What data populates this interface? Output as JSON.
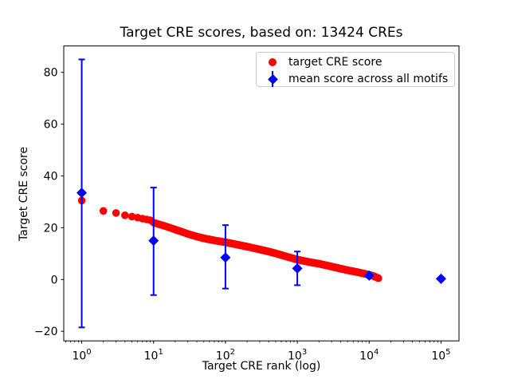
{
  "chart_data": {
    "type": "scatter",
    "title": "Target CRE scores, based on: 13424 CREs",
    "xlabel": "Target CRE rank (log)",
    "ylabel": "Target CRE score",
    "x_scale": "log",
    "xlim_log10": [
      -0.25,
      5.25
    ],
    "ylim": [
      -23.7,
      90.2
    ],
    "x_ticks": [
      1,
      10,
      100,
      1000,
      10000,
      100000
    ],
    "y_ticks": [
      -20,
      0,
      20,
      40,
      60,
      80
    ],
    "grid": false,
    "legend_position": "upper right",
    "n_cres": 13424,
    "series": [
      {
        "name": "target CRE score",
        "marker": "circle",
        "color": "#ff0000",
        "n_points": 13424,
        "note": "score vs CRE rank, dense decreasing curve; anchors interpolated in log10(rank)",
        "anchors": [
          [
            1,
            30.5
          ],
          [
            2,
            26.5
          ],
          [
            3,
            25.7
          ],
          [
            4,
            24.8
          ],
          [
            5,
            24.3
          ],
          [
            6,
            23.9
          ],
          [
            7,
            23.5
          ],
          [
            8,
            23.2
          ],
          [
            9,
            22.9
          ],
          [
            10,
            22.0
          ],
          [
            12,
            21.3
          ],
          [
            15,
            20.5
          ],
          [
            20,
            19.3
          ],
          [
            25,
            18.4
          ],
          [
            30,
            17.6
          ],
          [
            40,
            16.6
          ],
          [
            50,
            15.9
          ],
          [
            70,
            15.1
          ],
          [
            100,
            14.4
          ],
          [
            150,
            13.4
          ],
          [
            200,
            12.7
          ],
          [
            300,
            11.6
          ],
          [
            400,
            10.8
          ],
          [
            500,
            10.1
          ],
          [
            700,
            8.9
          ],
          [
            1000,
            7.7
          ],
          [
            1500,
            6.7
          ],
          [
            2000,
            6.1
          ],
          [
            3000,
            5.0
          ],
          [
            4000,
            4.2
          ],
          [
            5000,
            3.6
          ],
          [
            7000,
            2.8
          ],
          [
            9000,
            2.1
          ],
          [
            10000,
            1.8
          ],
          [
            11000,
            1.5
          ],
          [
            12000,
            1.1
          ],
          [
            13000,
            0.7
          ],
          [
            13424,
            0.5
          ]
        ]
      },
      {
        "name": "mean score across all motifs",
        "marker": "diamond",
        "color": "#0000ff",
        "points": [
          {
            "x": 1,
            "y": 33.5,
            "err_low": -18.5,
            "err_high": 85
          },
          {
            "x": 10,
            "y": 15.0,
            "err_low": -6.0,
            "err_high": 35.5
          },
          {
            "x": 100,
            "y": 8.5,
            "err_low": -3.5,
            "err_high": 21.0
          },
          {
            "x": 1000,
            "y": 4.3,
            "err_low": -2.2,
            "err_high": 10.8
          },
          {
            "x": 10000,
            "y": 1.5,
            "err_low": null,
            "err_high": null
          },
          {
            "x": 100000,
            "y": 0.3,
            "err_low": null,
            "err_high": null
          }
        ]
      }
    ]
  },
  "colors": {
    "background": "#ffffff",
    "axes": "#000000",
    "red_series": "#ff0000",
    "blue_series": "#0000ff",
    "legend_border": "#cccccc"
  }
}
